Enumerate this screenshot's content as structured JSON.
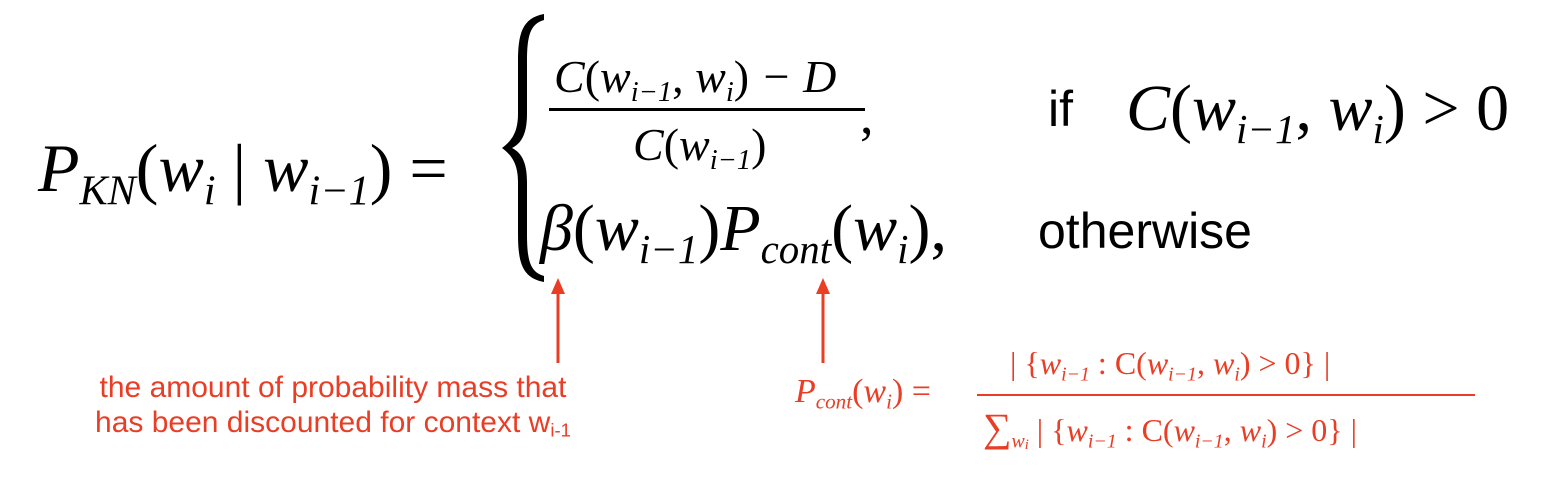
{
  "formula": {
    "lhs": {
      "P": "P",
      "sub": "KN",
      "open": "(",
      "w": "w",
      "i": "i",
      "bar": " | ",
      "w2": "w",
      "i_minus_1": "i−1",
      "close": ")",
      "equals": " ="
    },
    "case1": {
      "numerator": {
        "C": "C",
        "open": "(",
        "w": "w",
        "sub1": "i−1",
        "comma": ", ",
        "w2": "w",
        "sub2": "i",
        "close": ")",
        "minus_D": " − D"
      },
      "denominator": {
        "C": "C",
        "open": "(",
        "w": "w",
        "sub": "i−1",
        "close": ")"
      },
      "comma": ",",
      "condition_if": "if",
      "condition": {
        "C": "C",
        "open": "(",
        "w": "w",
        "sub1": "i−1",
        "comma": ", ",
        "w2": "w",
        "sub2": "i",
        "close": ")",
        "gt0": " > 0"
      }
    },
    "case2": {
      "beta": "β",
      "open": "(",
      "w": "w",
      "sub": "i−1",
      "close": ")",
      "P": "P",
      "P_sub": "cont",
      "open2": "(",
      "w2": "w",
      "sub2": "i",
      "close2": "),",
      "condition": "otherwise"
    }
  },
  "annotation": {
    "line1": "the amount of probability mass that",
    "line2": "has been discounted for context w",
    "line2_sub": "i-1"
  },
  "p_cont": {
    "lhs": {
      "P": "P",
      "sub": "cont",
      "open": "(",
      "w": "w",
      "i": "i",
      "close": ")",
      "equals": " ="
    },
    "numerator": "| {w_{i−1} : C(w_{i−1}, w_i) > 0} |",
    "numerator_parts": {
      "pre": "| {",
      "w": "w",
      "s1": "i−1",
      "colon": " : C(",
      "w2": "w",
      "s2": "i−1",
      "comma": ", ",
      "w3": "w",
      "s3": "i",
      "post": ") > 0} |"
    },
    "denominator_parts": {
      "sum": "∑",
      "sum_sub_w": "w",
      "sum_sub_i": "i",
      "pre": " | {",
      "w": "w",
      "s1": "i−1",
      "colon": " : C(",
      "w2": "w",
      "s2": "i−1",
      "comma": ", ",
      "w3": "w",
      "s3": "i",
      "post": ") > 0} |"
    }
  },
  "colors": {
    "text": "#000000",
    "accent": "#ea3d25",
    "background": "#ffffff"
  }
}
